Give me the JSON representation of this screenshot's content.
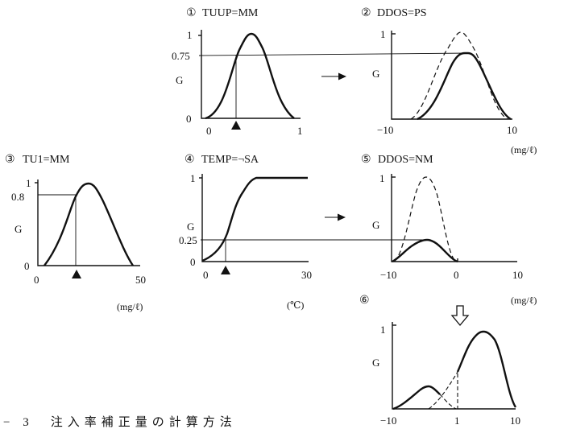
{
  "panels": [
    {
      "num": "①",
      "title": "TUUP=MM",
      "ylabel": "G",
      "y_ticks": [
        "1",
        "0.75",
        "0"
      ],
      "x_ticks": [
        "0",
        "1"
      ],
      "unit": ""
    },
    {
      "num": "②",
      "title": "DDOS=PS",
      "ylabel": "G",
      "y_ticks": [
        "1"
      ],
      "x_ticks": [
        "−10",
        "10"
      ],
      "unit": "(mg/ℓ)"
    },
    {
      "num": "③",
      "title": "TU1=MM",
      "ylabel": "G",
      "y_ticks": [
        "1",
        "0.8",
        "0"
      ],
      "x_ticks": [
        "0",
        "50"
      ],
      "unit": "(mg/ℓ)"
    },
    {
      "num": "④",
      "title": "TEMP=¬SA",
      "ylabel": "G",
      "y_ticks": [
        "1",
        "0.25",
        "0"
      ],
      "x_ticks": [
        "0",
        "30"
      ],
      "unit": "(℃)"
    },
    {
      "num": "⑤",
      "title": "DDOS=NM",
      "ylabel": "G",
      "y_ticks": [
        "1"
      ],
      "x_ticks": [
        "−10",
        "0",
        "10"
      ],
      "unit": "(mg/ℓ)"
    },
    {
      "num": "⑥",
      "title": "",
      "ylabel": "G",
      "y_ticks": [
        "1"
      ],
      "x_ticks": [
        "−10",
        "1",
        "10"
      ],
      "unit": ""
    }
  ],
  "caption": "− 3　注入率補正量の計算方法",
  "colors": {
    "ink": "#111111",
    "background": "#ffffff"
  },
  "icons": {
    "right_arrow": "right-arrow-icon",
    "down_arrow": "down-hollow-arrow-icon",
    "marker": "triangle-marker-icon"
  }
}
